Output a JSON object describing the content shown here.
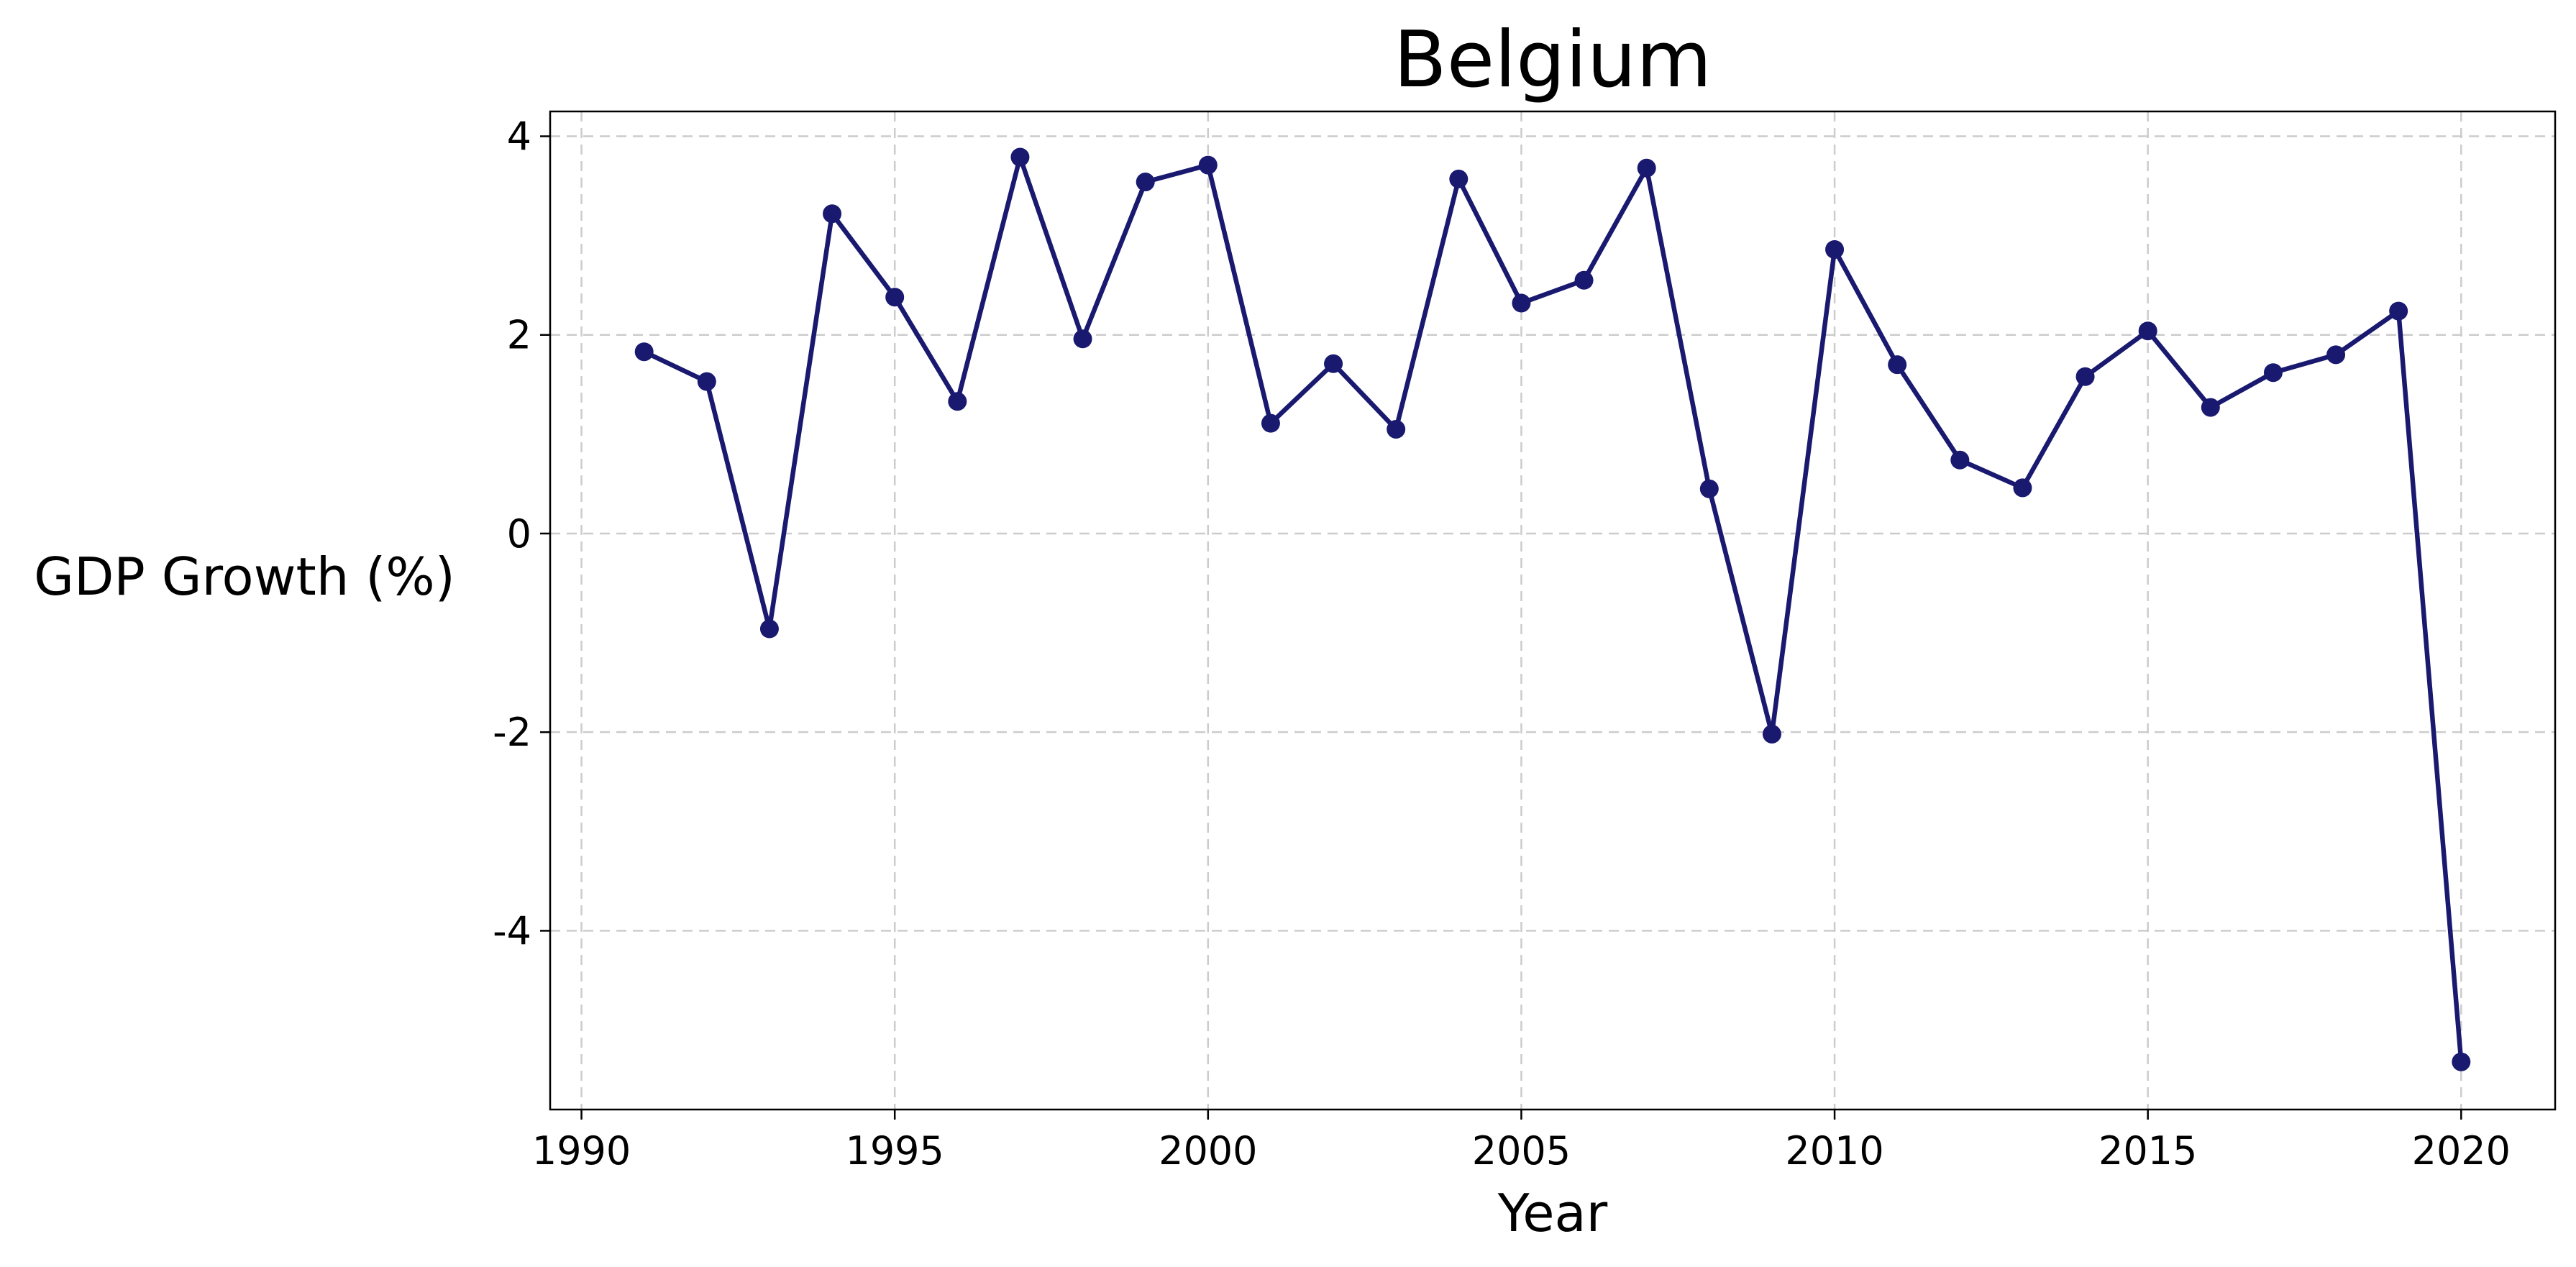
{
  "chart_data": {
    "type": "line",
    "title": "Belgium",
    "xlabel": "Year",
    "ylabel": "GDP Growth (%)",
    "xlim": [
      1989.5,
      2021.5
    ],
    "ylim": [
      -5.8,
      4.25
    ],
    "xticks": [
      1990,
      1995,
      2000,
      2005,
      2010,
      2015,
      2020
    ],
    "yticks": [
      -4,
      -2,
      0,
      2,
      4
    ],
    "grid": true,
    "line_color": "#191970",
    "series": [
      {
        "x": [
          1991,
          1992,
          1993,
          1994,
          1995,
          1996,
          1997,
          1998,
          1999,
          2000,
          2001,
          2002,
          2003,
          2004,
          2005,
          2006,
          2007,
          2008,
          2009,
          2010,
          2011,
          2012,
          2013,
          2014,
          2015,
          2016,
          2017,
          2018,
          2019,
          2020
        ],
        "values": [
          1.83,
          1.53,
          -0.96,
          3.22,
          2.38,
          1.33,
          3.79,
          1.96,
          3.54,
          3.71,
          1.11,
          1.71,
          1.05,
          3.57,
          2.32,
          2.55,
          3.68,
          0.45,
          -2.02,
          2.86,
          1.7,
          0.74,
          0.46,
          1.58,
          2.04,
          1.27,
          1.62,
          1.8,
          2.24,
          -5.32
        ]
      }
    ]
  }
}
